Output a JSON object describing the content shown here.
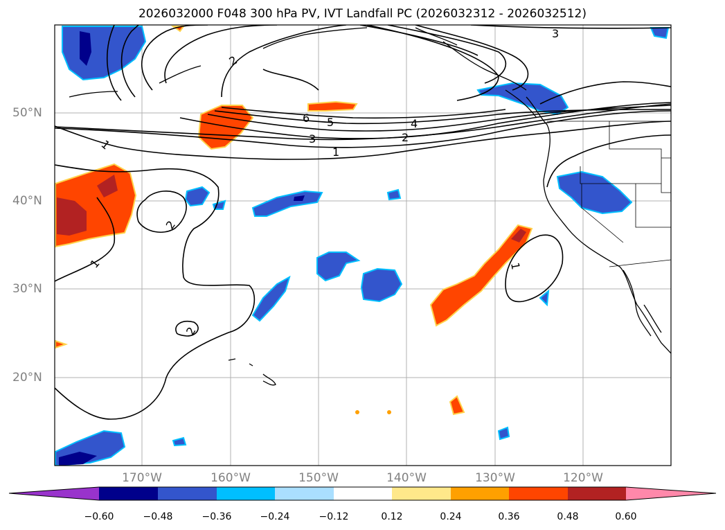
{
  "title": "2026032000 F048 300 hPa PV, IVT Landfall PC (2026032312 - 2026032512)",
  "lon_labels": [
    "170°W",
    "160°W",
    "150°W",
    "140°W",
    "130°W",
    "120°W"
  ],
  "lat_labels": [
    "50°N",
    "40°N",
    "30°N",
    "20°N"
  ],
  "contour_labels": [
    "1",
    "1",
    "1",
    "1",
    "2",
    "2",
    "2",
    "2",
    "3",
    "3",
    "4",
    "5",
    "6"
  ],
  "colorbar": {
    "ticks": [
      "−0.60",
      "−0.48",
      "−0.36",
      "−0.24",
      "−0.12",
      "0.12",
      "0.24",
      "0.36",
      "0.48",
      "0.60"
    ],
    "colors": [
      "#9933cc",
      "#00008b",
      "#3355cc",
      "#00bfff",
      "#aadfff",
      "#ffffff",
      "#ffe88a",
      "#ffa000",
      "#ff4500",
      "#b22222",
      "#ff88aa"
    ]
  }
}
